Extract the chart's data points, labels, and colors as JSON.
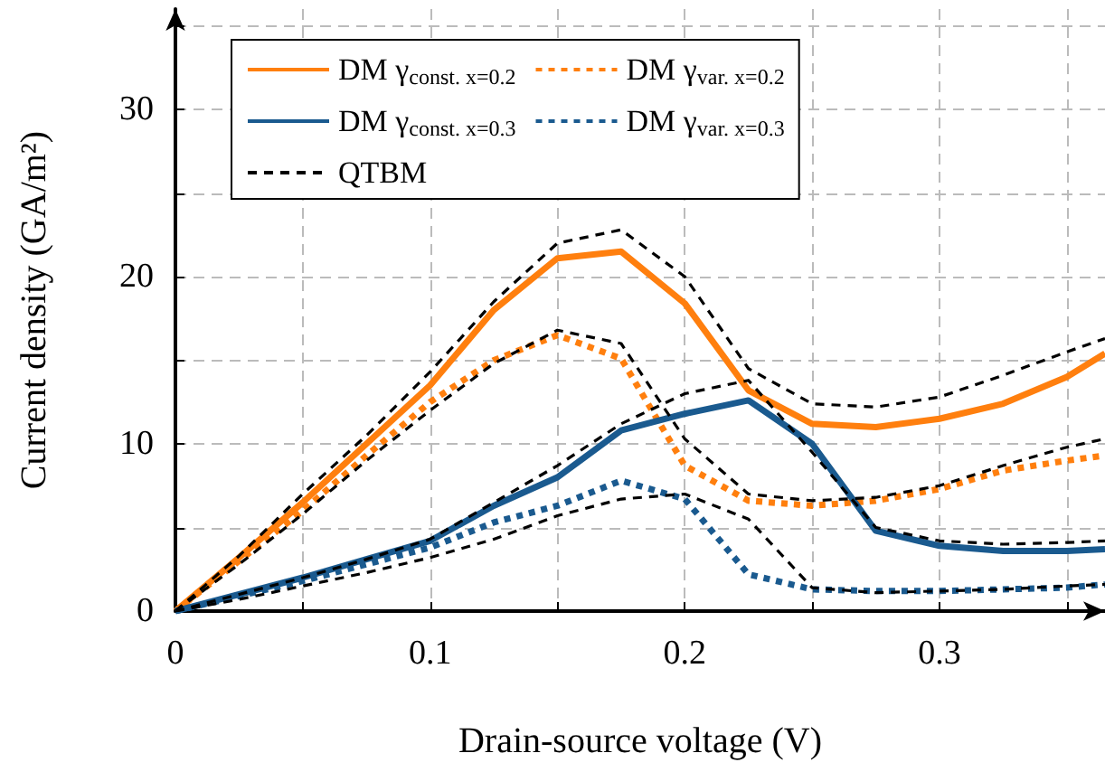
{
  "chart_data": {
    "type": "line",
    "xlabel": "Drain-source voltage (V)",
    "ylabel": "Current density (GA/m²)",
    "x": [
      0,
      0.025,
      0.05,
      0.075,
      0.1,
      0.125,
      0.15,
      0.175,
      0.2,
      0.225,
      0.25,
      0.275,
      0.3,
      0.325,
      0.35,
      0.365
    ],
    "series": [
      {
        "name": "DM γ$_{const. x=0.2}$",
        "color": "#ff7f0e",
        "line_style": "solid",
        "values": [
          0,
          3.2,
          6.5,
          10,
          13.5,
          18,
          21.1,
          21.5,
          18.4,
          13.2,
          11.2,
          11.0,
          11.5,
          12.4,
          14.0,
          15.4
        ]
      },
      {
        "name": "DM γ$_{var. x=0.2}$",
        "color": "#ff7f0e",
        "line_style": "dotted",
        "values": [
          0,
          3,
          6,
          9.3,
          12.5,
          15,
          16.5,
          15.1,
          8.7,
          6.6,
          6.3,
          6.6,
          7.3,
          8.4,
          9.0,
          9.3
        ]
      },
      {
        "name": "DM γ$_{const. x=0.3}$",
        "color": "#1a5a8f",
        "line_style": "solid",
        "values": [
          0,
          1,
          2.0,
          3.1,
          4.2,
          6.3,
          8.0,
          10.8,
          11.8,
          12.6,
          10,
          4.8,
          3.9,
          3.6,
          3.6,
          3.7
        ]
      },
      {
        "name": "DM γ$_{var. x=0.3}$",
        "color": "#1a5a8f",
        "line_style": "dotted",
        "values": [
          0,
          0.9,
          1.8,
          2.8,
          3.8,
          5.3,
          6.3,
          7.8,
          6.7,
          2.2,
          1.3,
          1.2,
          1.2,
          1.3,
          1.4,
          1.6
        ]
      },
      {
        "name": "QTBM",
        "color": "#000000",
        "line_style": "dashed",
        "values": [
          0,
          3.3,
          7,
          10.5,
          14.3,
          18.5,
          22,
          22.8,
          20,
          14.5,
          12.4,
          12.2,
          12.8,
          14.1,
          15.5,
          16.3
        ]
      },
      {
        "color": "#000000",
        "line_style": "dashed",
        "values": [
          0,
          2.8,
          5.8,
          9,
          12,
          14.8,
          16.8,
          16,
          10.3,
          7.0,
          6.6,
          6.8,
          7.5,
          8.7,
          9.8,
          10.3
        ]
      },
      {
        "color": "#000000",
        "line_style": "dashed",
        "values": [
          0,
          1,
          2.0,
          3.1,
          4.3,
          6.5,
          8.7,
          11.2,
          13,
          13.8,
          9.5,
          5.0,
          4.2,
          4.0,
          4.1,
          4.2
        ]
      },
      {
        "color": "#000000",
        "line_style": "dashed",
        "values": [
          0,
          0.7,
          1.5,
          2.3,
          3.2,
          4.3,
          5.7,
          6.7,
          7.0,
          5.5,
          1.4,
          1.1,
          1.2,
          1.3,
          1.5,
          1.6
        ]
      }
    ],
    "xlim": [
      0,
      0.365
    ],
    "ylim": [
      0,
      36
    ],
    "xticks": [
      0,
      {
        "value": 0.05,
        "label": null
      },
      0.1,
      {
        "value": 0.15,
        "label": null
      },
      0.2,
      {
        "value": 0.25,
        "label": null
      },
      0.3,
      {
        "value": 0.35,
        "label": null
      }
    ],
    "yticks": [
      0,
      {
        "value": 5,
        "label": null
      },
      10,
      {
        "value": 15,
        "label": null
      },
      20,
      {
        "value": 25,
        "label": null
      },
      30,
      {
        "value": 35,
        "label": null
      }
    ],
    "grid": true,
    "legend": "top",
    "marker": "none"
  }
}
